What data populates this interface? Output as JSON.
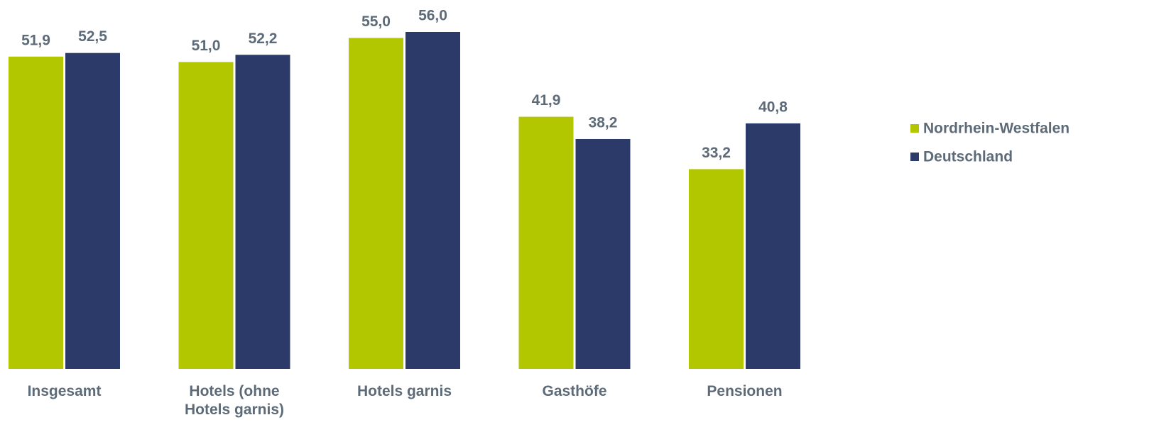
{
  "chart_data": {
    "type": "bar",
    "categories": [
      "Insgesamt",
      "Hotels (ohne Hotels garnis)",
      "Hotels garnis",
      "Gasthöfe",
      "Pensionen"
    ],
    "series": [
      {
        "name": "Nordrhein-Westfalen",
        "color": "#b3c700",
        "values": [
          51.9,
          51.0,
          55.0,
          41.9,
          33.2
        ],
        "value_labels": [
          "51,9",
          "51,0",
          "55,0",
          "41,9",
          "33,2"
        ]
      },
      {
        "name": "Deutschland",
        "color": "#2b3a68",
        "values": [
          52.5,
          52.2,
          56.0,
          38.2,
          40.8
        ],
        "value_labels": [
          "52,5",
          "52,2",
          "56,0",
          "38,2",
          "40,8"
        ]
      }
    ],
    "legend": "right"
  }
}
